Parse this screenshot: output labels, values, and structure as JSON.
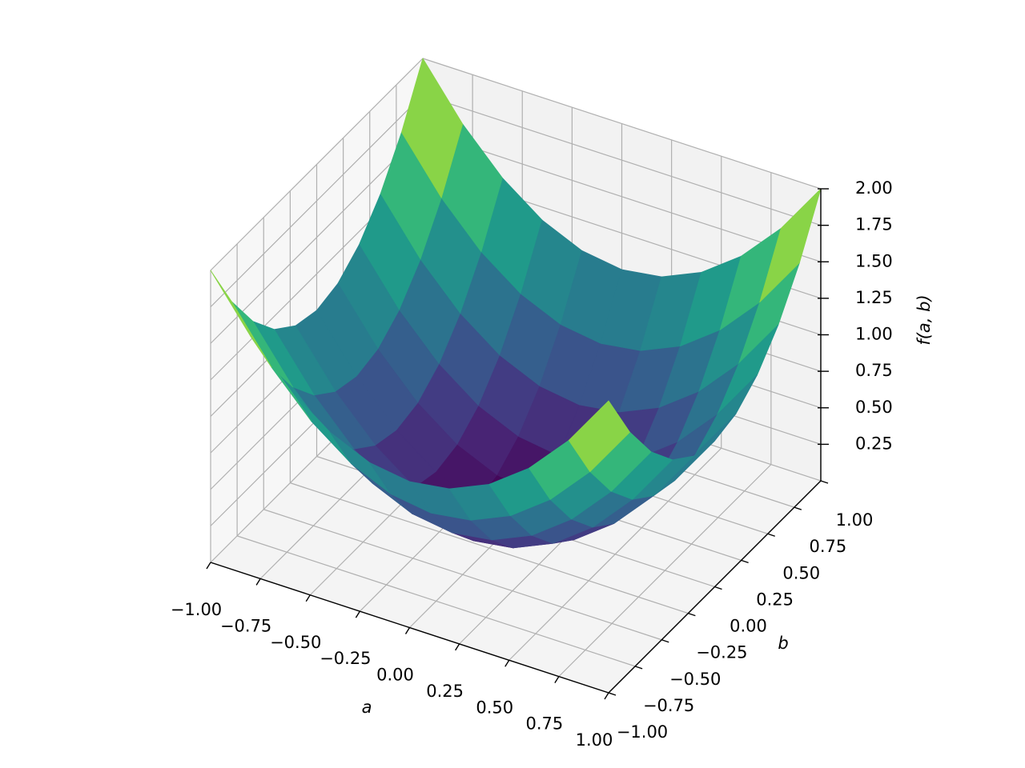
{
  "chart_data": {
    "type": "surface",
    "x": [
      -1,
      -0.8,
      -0.6,
      -0.4,
      -0.2,
      0,
      0.2,
      0.4,
      0.6,
      0.8,
      1
    ],
    "y": [
      -1,
      -0.8,
      -0.6,
      -0.4,
      -0.2,
      0,
      0.2,
      0.4,
      0.6,
      0.8,
      1
    ],
    "z": [
      [
        2,
        1.64,
        1.36,
        1.16,
        1.04,
        1,
        1.04,
        1.16,
        1.36,
        1.64,
        2
      ],
      [
        1.64,
        1.28,
        1,
        0.8,
        0.68,
        0.64,
        0.68,
        0.8,
        1,
        1.28,
        1.64
      ],
      [
        1.36,
        1,
        0.72,
        0.52,
        0.4,
        0.36,
        0.4,
        0.52,
        0.72,
        1,
        1.36
      ],
      [
        1.16,
        0.8,
        0.52,
        0.32,
        0.2,
        0.16,
        0.2,
        0.32,
        0.52,
        0.8,
        1.16
      ],
      [
        1.04,
        0.68,
        0.4,
        0.2,
        0.08,
        0.04,
        0.08,
        0.2,
        0.4,
        0.68,
        1.04
      ],
      [
        1,
        0.64,
        0.36,
        0.16,
        0.04,
        0,
        0.04,
        0.16,
        0.36,
        0.64,
        1
      ],
      [
        1.04,
        0.68,
        0.4,
        0.2,
        0.08,
        0.04,
        0.08,
        0.2,
        0.4,
        0.68,
        1.04
      ],
      [
        1.16,
        0.8,
        0.52,
        0.32,
        0.2,
        0.16,
        0.2,
        0.32,
        0.52,
        0.8,
        1.16
      ],
      [
        1.36,
        1,
        0.72,
        0.52,
        0.4,
        0.36,
        0.4,
        0.52,
        0.72,
        1,
        1.36
      ],
      [
        1.64,
        1.28,
        1,
        0.8,
        0.68,
        0.64,
        0.68,
        0.8,
        1,
        1.28,
        1.64
      ],
      [
        2,
        1.64,
        1.36,
        1.16,
        1.04,
        1,
        1.04,
        1.16,
        1.36,
        1.64,
        2
      ]
    ],
    "colormap": "viridis",
    "xlabel": "a",
    "ylabel": "b",
    "zlabel": "f(a, b)",
    "xlim": [
      -1,
      1
    ],
    "ylim": [
      -1,
      1
    ],
    "zlim": [
      0,
      2
    ],
    "xticks": [
      {
        "value": -1,
        "label": "−1.00"
      },
      {
        "value": -0.75,
        "label": "−0.75"
      },
      {
        "value": -0.5,
        "label": "−0.50"
      },
      {
        "value": -0.25,
        "label": "−0.25"
      },
      {
        "value": 0,
        "label": "0.00"
      },
      {
        "value": 0.25,
        "label": "0.25"
      },
      {
        "value": 0.5,
        "label": "0.50"
      },
      {
        "value": 0.75,
        "label": "0.75"
      },
      {
        "value": 1,
        "label": "1.00"
      }
    ],
    "yticks": [
      {
        "value": -1,
        "label": "−1.00"
      },
      {
        "value": -0.75,
        "label": "−0.75"
      },
      {
        "value": -0.5,
        "label": "−0.50"
      },
      {
        "value": -0.25,
        "label": "−0.25"
      },
      {
        "value": 0,
        "label": "0.00"
      },
      {
        "value": 0.25,
        "label": "0.25"
      },
      {
        "value": 0.5,
        "label": "0.50"
      },
      {
        "value": 0.75,
        "label": "0.75"
      },
      {
        "value": 1,
        "label": "1.00"
      }
    ],
    "zticks": [
      {
        "value": 0.25,
        "label": "0.25"
      },
      {
        "value": 0.5,
        "label": "0.50"
      },
      {
        "value": 0.75,
        "label": "0.75"
      },
      {
        "value": 1,
        "label": "1.00"
      },
      {
        "value": 1.25,
        "label": "1.25"
      },
      {
        "value": 1.5,
        "label": "1.50"
      },
      {
        "value": 1.75,
        "label": "1.75"
      },
      {
        "value": 2,
        "label": "2.00"
      }
    ],
    "grid": true
  }
}
